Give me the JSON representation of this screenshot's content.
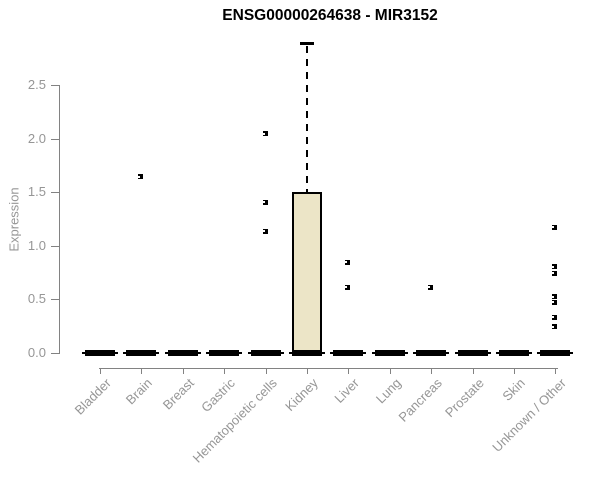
{
  "chart_data": {
    "type": "boxplot",
    "title": "ENSG00000264638 - MIR3152",
    "ylabel": "Expression",
    "xlabel": "",
    "ylim": [
      0,
      2.9
    ],
    "yticks": [
      0.0,
      0.5,
      1.0,
      1.5,
      2.0,
      2.5
    ],
    "grid": false,
    "legend": "none",
    "categories": [
      "Bladder",
      "Brain",
      "Breast",
      "Gastric",
      "Hematopoietic cells",
      "Kidney",
      "Liver",
      "Lung",
      "Pancreas",
      "Prostate",
      "Skin",
      "Unknown / Other"
    ],
    "series": [
      {
        "category": "Bladder",
        "whisker_low": 0,
        "q1": 0,
        "median": 0,
        "q3": 0,
        "whisker_high": 0,
        "outliers": []
      },
      {
        "category": "Brain",
        "whisker_low": 0,
        "q1": 0,
        "median": 0,
        "q3": 0,
        "whisker_high": 0,
        "outliers": [
          1.64
        ]
      },
      {
        "category": "Breast",
        "whisker_low": 0,
        "q1": 0,
        "median": 0,
        "q3": 0,
        "whisker_high": 0,
        "outliers": []
      },
      {
        "category": "Gastric",
        "whisker_low": 0,
        "q1": 0,
        "median": 0,
        "q3": 0,
        "whisker_high": 0,
        "outliers": []
      },
      {
        "category": "Hematopoietic cells",
        "whisker_low": 0,
        "q1": 0,
        "median": 0,
        "q3": 0,
        "whisker_high": 0,
        "outliers": [
          2.04,
          1.4,
          1.13
        ]
      },
      {
        "category": "Kidney",
        "whisker_low": 0,
        "q1": 0,
        "median": 0,
        "q3": 1.5,
        "whisker_high": 2.89,
        "outliers": []
      },
      {
        "category": "Liver",
        "whisker_low": 0,
        "q1": 0,
        "median": 0,
        "q3": 0,
        "whisker_high": 0,
        "outliers": [
          0.84,
          0.61
        ]
      },
      {
        "category": "Lung",
        "whisker_low": 0,
        "q1": 0,
        "median": 0,
        "q3": 0,
        "whisker_high": 0,
        "outliers": []
      },
      {
        "category": "Pancreas",
        "whisker_low": 0,
        "q1": 0,
        "median": 0,
        "q3": 0,
        "whisker_high": 0,
        "outliers": [
          0.61
        ]
      },
      {
        "category": "Prostate",
        "whisker_low": 0,
        "q1": 0,
        "median": 0,
        "q3": 0,
        "whisker_high": 0,
        "outliers": []
      },
      {
        "category": "Skin",
        "whisker_low": 0,
        "q1": 0,
        "median": 0,
        "q3": 0,
        "whisker_high": 0,
        "outliers": []
      },
      {
        "category": "Unknown / Other",
        "whisker_low": 0,
        "q1": 0,
        "median": 0,
        "q3": 0,
        "whisker_high": 0,
        "outliers": [
          1.17,
          0.8,
          0.74,
          0.52,
          0.47,
          0.33,
          0.24
        ]
      }
    ],
    "colors": {
      "box_fill": "#ece5c7",
      "box_line": "#000000",
      "axis": "#828282",
      "tick_label": "#969696",
      "title": "#000000"
    }
  }
}
